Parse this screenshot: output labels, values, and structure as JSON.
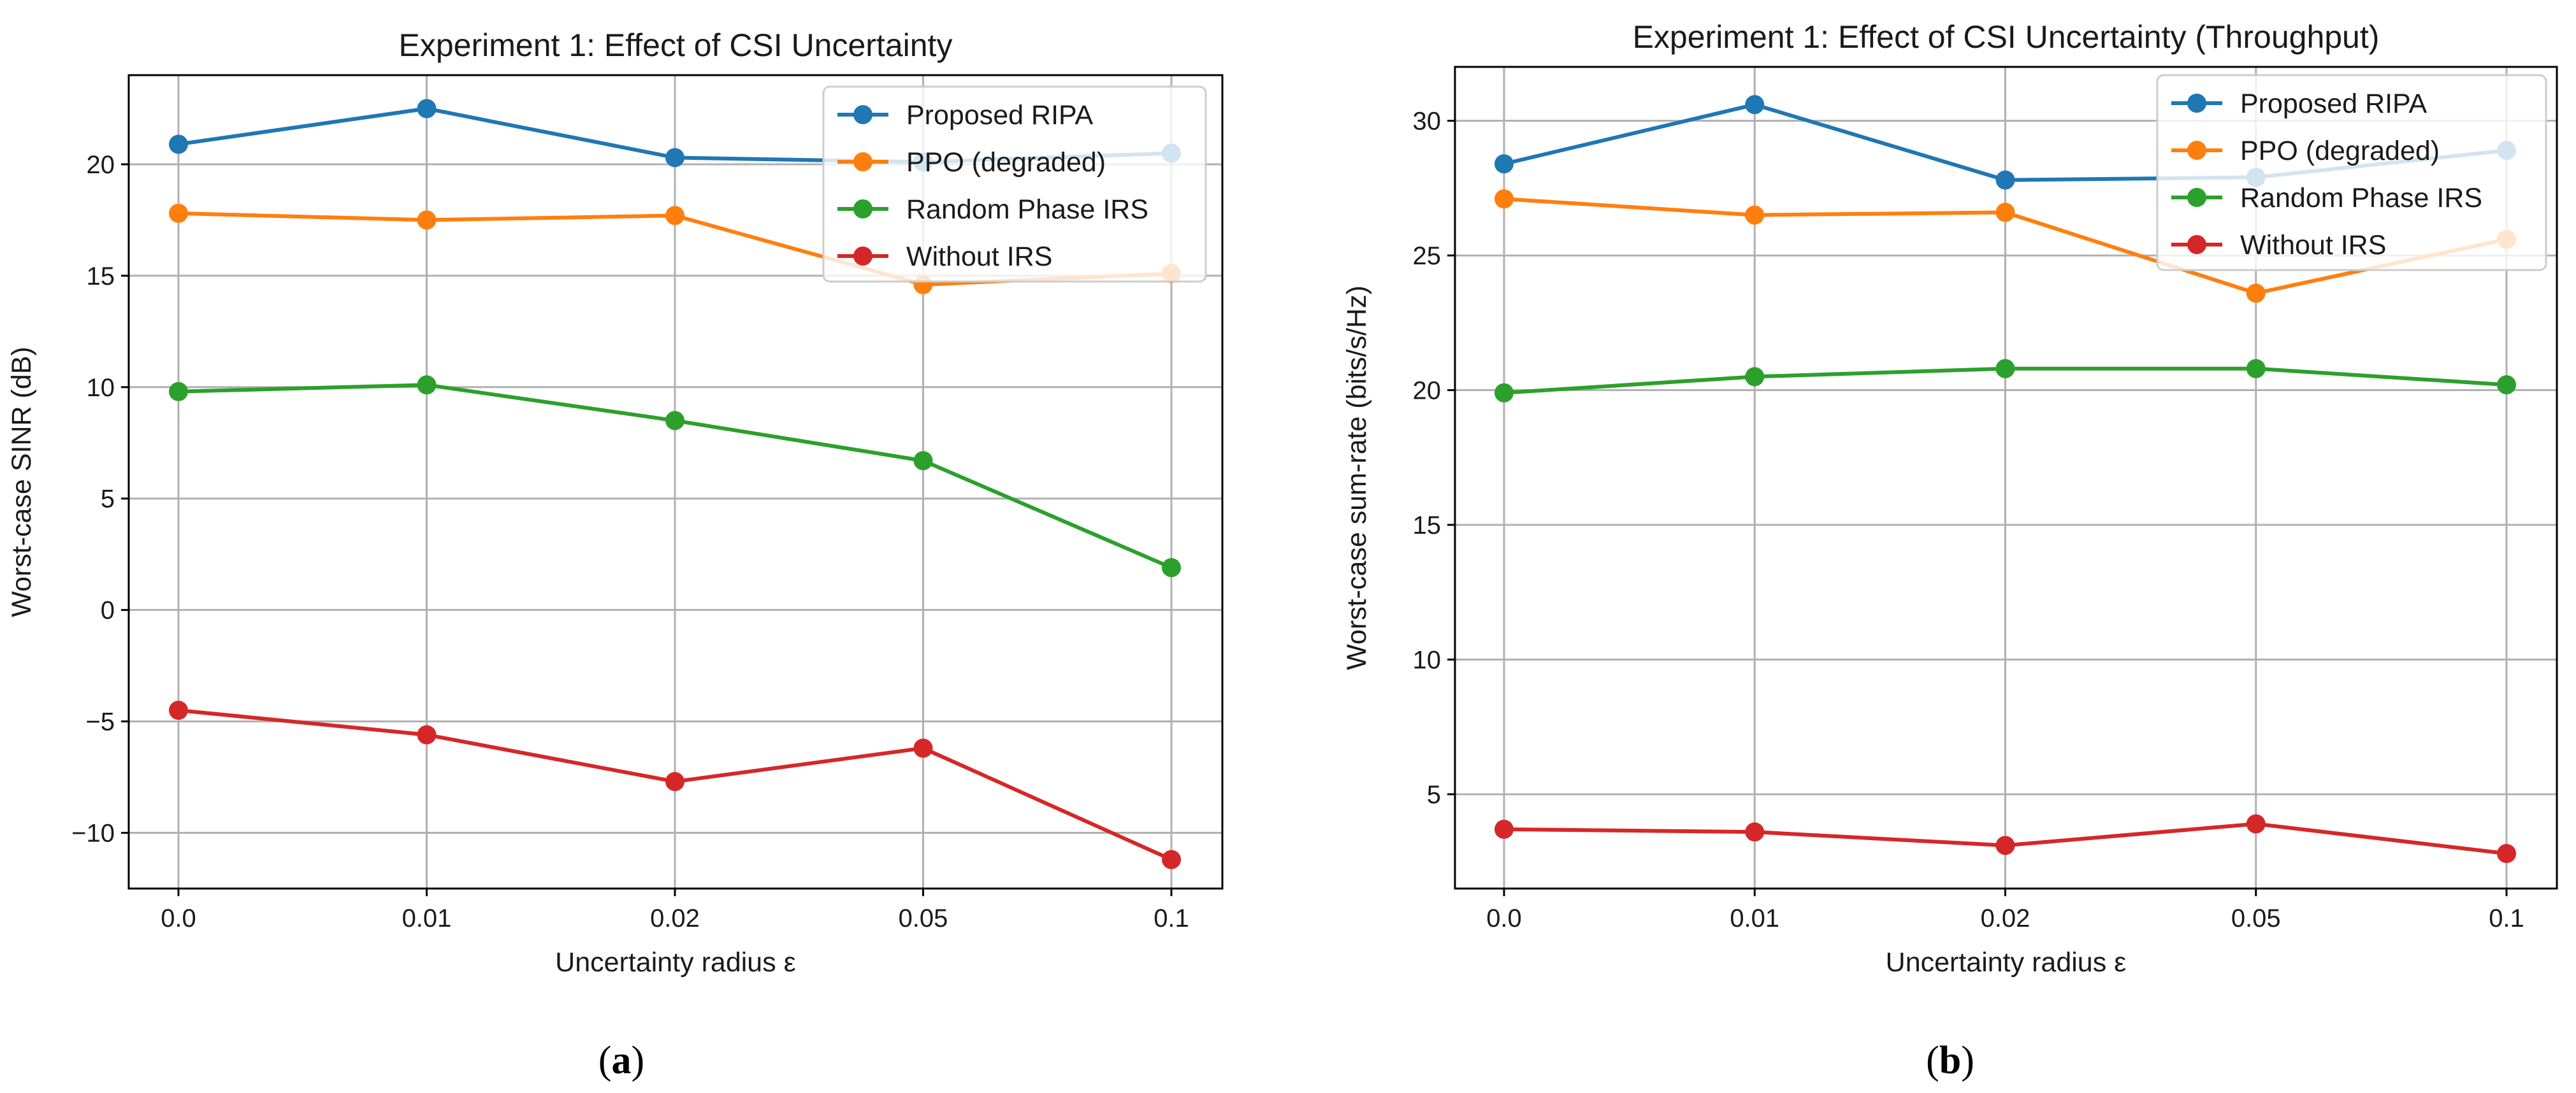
{
  "chart_data": [
    {
      "type": "line",
      "title": "Experiment 1: Effect of CSI Uncertainty",
      "xlabel": "Uncertainty radius ε",
      "ylabel": "Worst-case SINR (dB)",
      "categories": [
        "0.0",
        "0.01",
        "0.02",
        "0.05",
        "0.1"
      ],
      "ylim": [
        -12.5,
        24
      ],
      "yticks": [
        -10,
        -5,
        0,
        5,
        10,
        15,
        20
      ],
      "ytick_labels": [
        "−10",
        "−5",
        "0",
        "5",
        "10",
        "15",
        "20"
      ],
      "grid": true,
      "legend_position": "upper-right",
      "caption": "a",
      "series": [
        {
          "name": "Proposed RIPA",
          "color": "#1f77b4",
          "values": [
            20.9,
            22.5,
            20.3,
            20.1,
            20.5
          ]
        },
        {
          "name": "PPO (degraded)",
          "color": "#ff7f0e",
          "values": [
            17.8,
            17.5,
            17.7,
            14.6,
            15.1
          ]
        },
        {
          "name": "Random Phase IRS",
          "color": "#2ca02c",
          "values": [
            9.8,
            10.1,
            8.5,
            6.7,
            1.9
          ]
        },
        {
          "name": "Without IRS",
          "color": "#d62728",
          "values": [
            -4.5,
            -5.6,
            -7.7,
            -6.2,
            -11.2
          ]
        }
      ]
    },
    {
      "type": "line",
      "title": "Experiment 1: Effect of CSI Uncertainty (Throughput)",
      "xlabel": "Uncertainty radius ε",
      "ylabel": "Worst-case sum-rate (bits/s/Hz)",
      "categories": [
        "0.0",
        "0.01",
        "0.02",
        "0.05",
        "0.1"
      ],
      "ylim": [
        1.5,
        32
      ],
      "yticks": [
        5,
        10,
        15,
        20,
        25,
        30
      ],
      "ytick_labels": [
        "5",
        "10",
        "15",
        "20",
        "25",
        "30"
      ],
      "grid": true,
      "legend_position": "upper-right",
      "caption": "b",
      "series": [
        {
          "name": "Proposed RIPA",
          "color": "#1f77b4",
          "values": [
            28.4,
            30.6,
            27.8,
            27.9,
            28.9
          ]
        },
        {
          "name": "PPO (degraded)",
          "color": "#ff7f0e",
          "values": [
            27.1,
            26.5,
            26.6,
            23.6,
            25.6
          ]
        },
        {
          "name": "Random Phase IRS",
          "color": "#2ca02c",
          "values": [
            19.9,
            20.5,
            20.8,
            20.8,
            20.2
          ]
        },
        {
          "name": "Without IRS",
          "color": "#d62728",
          "values": [
            3.7,
            3.6,
            3.1,
            3.9,
            2.8
          ]
        }
      ]
    }
  ]
}
